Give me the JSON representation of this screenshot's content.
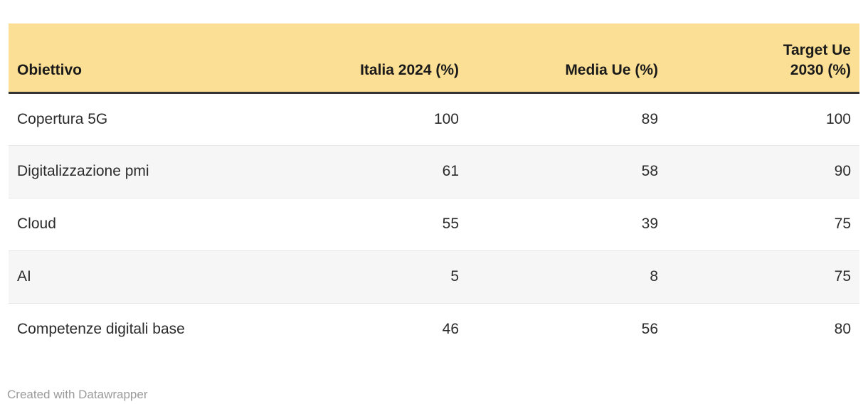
{
  "chart_data": {
    "type": "table",
    "title": "",
    "columns": [
      "Obiettivo",
      "Italia 2024 (%)",
      "Media Ue (%)",
      "Target Ue 2030 (%)"
    ],
    "columns_display": [
      "Obiettivo",
      "Italia 2024 (%)",
      "Media Ue (%)",
      "Target Ue\n2030 (%)"
    ],
    "column_alignments": [
      "left",
      "right",
      "right",
      "right"
    ],
    "rows": [
      [
        "Copertura 5G",
        100,
        89,
        100
      ],
      [
        "Digitalizzazione pmi",
        61,
        58,
        90
      ],
      [
        "Cloud",
        55,
        39,
        75
      ],
      [
        "AI",
        5,
        8,
        75
      ],
      [
        "Competenze digitali base",
        46,
        56,
        80
      ]
    ],
    "layout": {
      "header_background": "#FBDF94",
      "header_text_color": "#1A1A1A",
      "header_bottom_border": "#333333",
      "even_row_background": "#F6F6F6",
      "odd_row_background": "#FFFFFF",
      "row_divider_color": "#E7E7E7",
      "body_text_color": "#2B2B2B",
      "zebra": true
    }
  },
  "footer": {
    "credit": "Created with Datawrapper",
    "credit_color": "#9B9B9B"
  }
}
